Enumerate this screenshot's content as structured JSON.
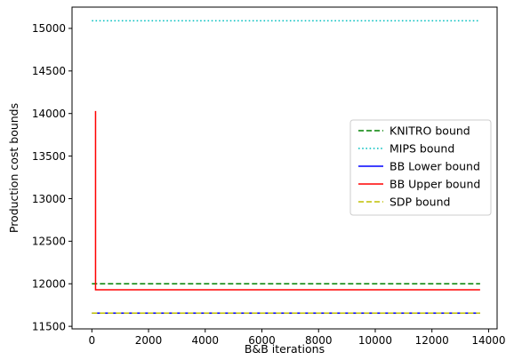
{
  "chart_data": {
    "type": "line",
    "xlabel": "B&B iterations",
    "ylabel": "Production cost bounds",
    "xlim": [
      -700,
      14300
    ],
    "ylim": [
      11470,
      15250
    ],
    "x_ticks": [
      0,
      2000,
      4000,
      6000,
      8000,
      10000,
      12000,
      14000
    ],
    "y_ticks": [
      11500,
      12000,
      12500,
      13000,
      13500,
      14000,
      14500,
      15000
    ],
    "grid": false,
    "legend_placement": "center-right",
    "series": [
      {
        "name": "KNITRO bound",
        "color": "#008000",
        "dash": "dashed",
        "points": [
          [
            0,
            12000
          ],
          [
            13700,
            12000
          ]
        ]
      },
      {
        "name": "MIPS bound",
        "color": "#00bfbf",
        "dash": "dotted",
        "points": [
          [
            0,
            15090
          ],
          [
            13700,
            15090
          ]
        ]
      },
      {
        "name": "BB Lower bound",
        "color": "#0000ff",
        "dash": "solid",
        "points": [
          [
            0,
            11655
          ],
          [
            13700,
            11655
          ]
        ]
      },
      {
        "name": "BB Upper bound",
        "color": "#ff0000",
        "dash": "solid",
        "points": [
          [
            130,
            14030
          ],
          [
            130,
            11930
          ],
          [
            13700,
            11930
          ]
        ]
      },
      {
        "name": "SDP bound",
        "color": "#bfbf00",
        "dash": "dashed",
        "points": [
          [
            0,
            11655
          ],
          [
            13700,
            11655
          ]
        ]
      }
    ]
  }
}
